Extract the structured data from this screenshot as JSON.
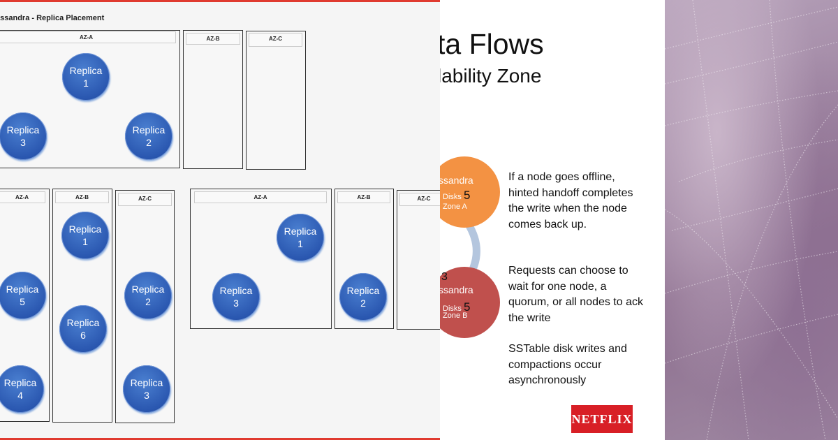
{
  "left_panel": {
    "title": "assandra - Replica Placement",
    "top": {
      "zones": [
        "AZ-A",
        "AZ-B",
        "AZ-C"
      ],
      "replicas": [
        "Replica 1",
        "Replica 3",
        "Replica 2"
      ]
    },
    "bottom_left": {
      "zones": [
        "AZ-A",
        "AZ-B",
        "AZ-C"
      ],
      "replicas": [
        "Replica 1",
        "Replica 5",
        "Replica 6",
        "Replica 4",
        "Replica 2",
        "Replica 3"
      ]
    },
    "bottom_right": {
      "zones": [
        "AZ-A",
        "AZ-B",
        "AZ-C"
      ],
      "replicas": [
        "Replica 1",
        "Replica 3",
        "Replica 2"
      ]
    },
    "accent": "#e03a2f",
    "replica_color": "#2a57b0"
  },
  "slide": {
    "title": "ta Flows",
    "subtitle": "lability Zone",
    "node_a": {
      "name": "Cassandra",
      "disks_label": "Disks",
      "disks": "5",
      "zone": "Zone A",
      "color": "#f39243"
    },
    "node_b": {
      "prefix": "3",
      "name": "Cassandra",
      "disks_label": "Disks",
      "disks": "5",
      "zone": "Zone B",
      "color": "#c0504d"
    },
    "paragraphs": [
      "If a node goes offline, hinted handoff completes the write when the node comes back up.",
      "Requests can choose to wait for one node, a quorum, or all nodes to ack the write",
      "SSTable disk writes and compactions occur asynchronously"
    ],
    "logo": "NETFLIX"
  }
}
